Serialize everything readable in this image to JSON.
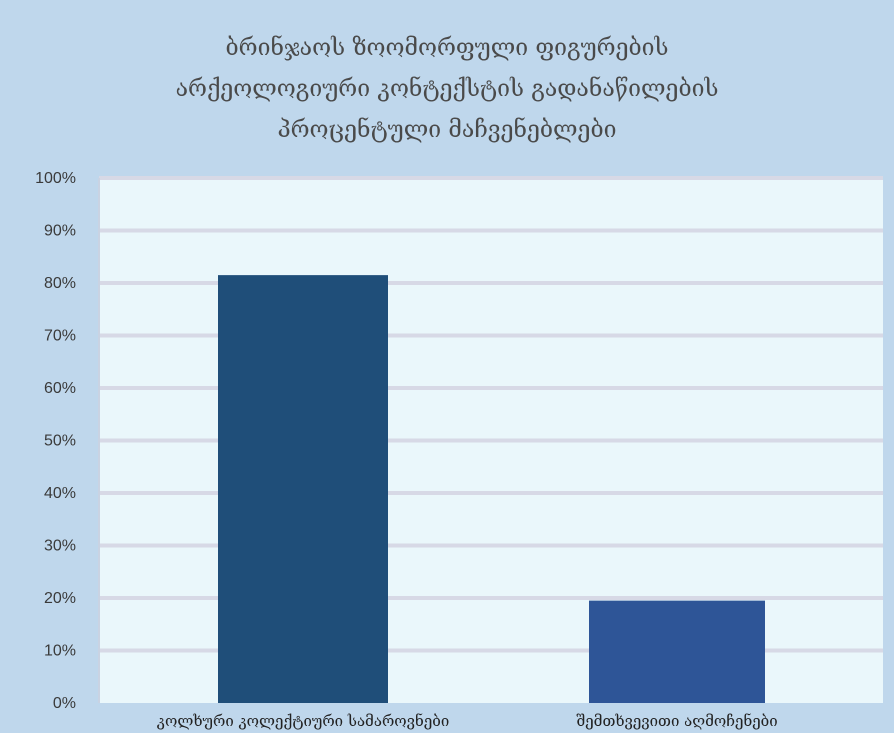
{
  "colors": {
    "background": "#bfd7ec",
    "plot_area": "#eaf7fb",
    "gridline": "#d7d9e6",
    "bar_1": "#1f4e79",
    "bar_2": "#2e5597"
  },
  "chart_data": {
    "type": "bar",
    "title_lines": [
      "ბრინჯაოს ზოომორფული ფიგურების",
      "არქეოლოგიური კონტექსტის გადანაწილების",
      "პროცენტული მაჩვენებლები"
    ],
    "categories": [
      "კოლხური კოლექტიური სამაროვნები",
      "შემთხვევითი აღმოჩენები"
    ],
    "values": [
      81.5,
      19.5
    ],
    "ylim": [
      0,
      100
    ],
    "y_ticks": [
      "0%",
      "10%",
      "20%",
      "30%",
      "40%",
      "50%",
      "60%",
      "70%",
      "80%",
      "90%",
      "100%"
    ],
    "grid": true,
    "legend": "none"
  }
}
